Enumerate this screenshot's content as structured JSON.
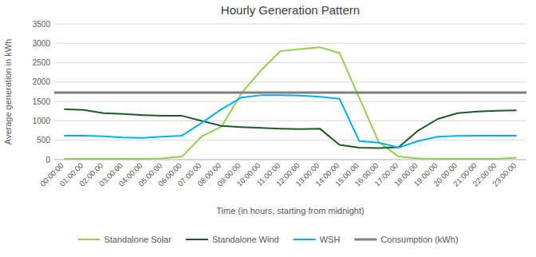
{
  "chart_data": {
    "type": "line",
    "title": "Hourly Generation Pattern",
    "x_label": "Time (in hours, starting from midnight)",
    "y_label": "Average generation in kWh",
    "categories": [
      "00:00:00",
      "01:00:00",
      "02:00:00",
      "03:00:00",
      "04:00:00",
      "05:00:00",
      "06:00:00",
      "07:00:00",
      "08:00:00",
      "09:00:00",
      "10:00:00",
      "11:00:00",
      "12:00:00",
      "13:00:00",
      "14:00:00",
      "15:00:00",
      "16:00:00",
      "17:00:00",
      "18:00:00",
      "19:00:00",
      "20:00:00",
      "21:00:00",
      "22:00:00",
      "23:00:00"
    ],
    "series": [
      {
        "name": "Standalone Solar",
        "color": "#92d050",
        "values": [
          20,
          20,
          20,
          20,
          20,
          30,
          80,
          600,
          850,
          1700,
          2300,
          2800,
          2850,
          2900,
          2750,
          1600,
          450,
          80,
          30,
          20,
          20,
          20,
          20,
          50
        ]
      },
      {
        "name": "Standalone Wind",
        "color": "#1d5a27",
        "values": [
          1300,
          1280,
          1200,
          1180,
          1150,
          1130,
          1130,
          1000,
          870,
          840,
          820,
          800,
          790,
          800,
          380,
          310,
          300,
          320,
          750,
          1050,
          1200,
          1240,
          1260,
          1270
        ]
      },
      {
        "name": "WSH",
        "color": "#00b0f0",
        "values": [
          620,
          620,
          600,
          570,
          560,
          590,
          620,
          950,
          1300,
          1600,
          1660,
          1660,
          1650,
          1620,
          1570,
          480,
          440,
          310,
          480,
          590,
          610,
          620,
          620,
          620
        ]
      },
      {
        "name": "Consumption (kWh)",
        "type": "hline",
        "color": "#7f7f7f",
        "value": 1730
      }
    ],
    "ylim": [
      0,
      3500
    ],
    "yticks": [
      0,
      500,
      1000,
      1500,
      2000,
      2500,
      3000,
      3500
    ],
    "grid": true,
    "legend": "bottom"
  }
}
